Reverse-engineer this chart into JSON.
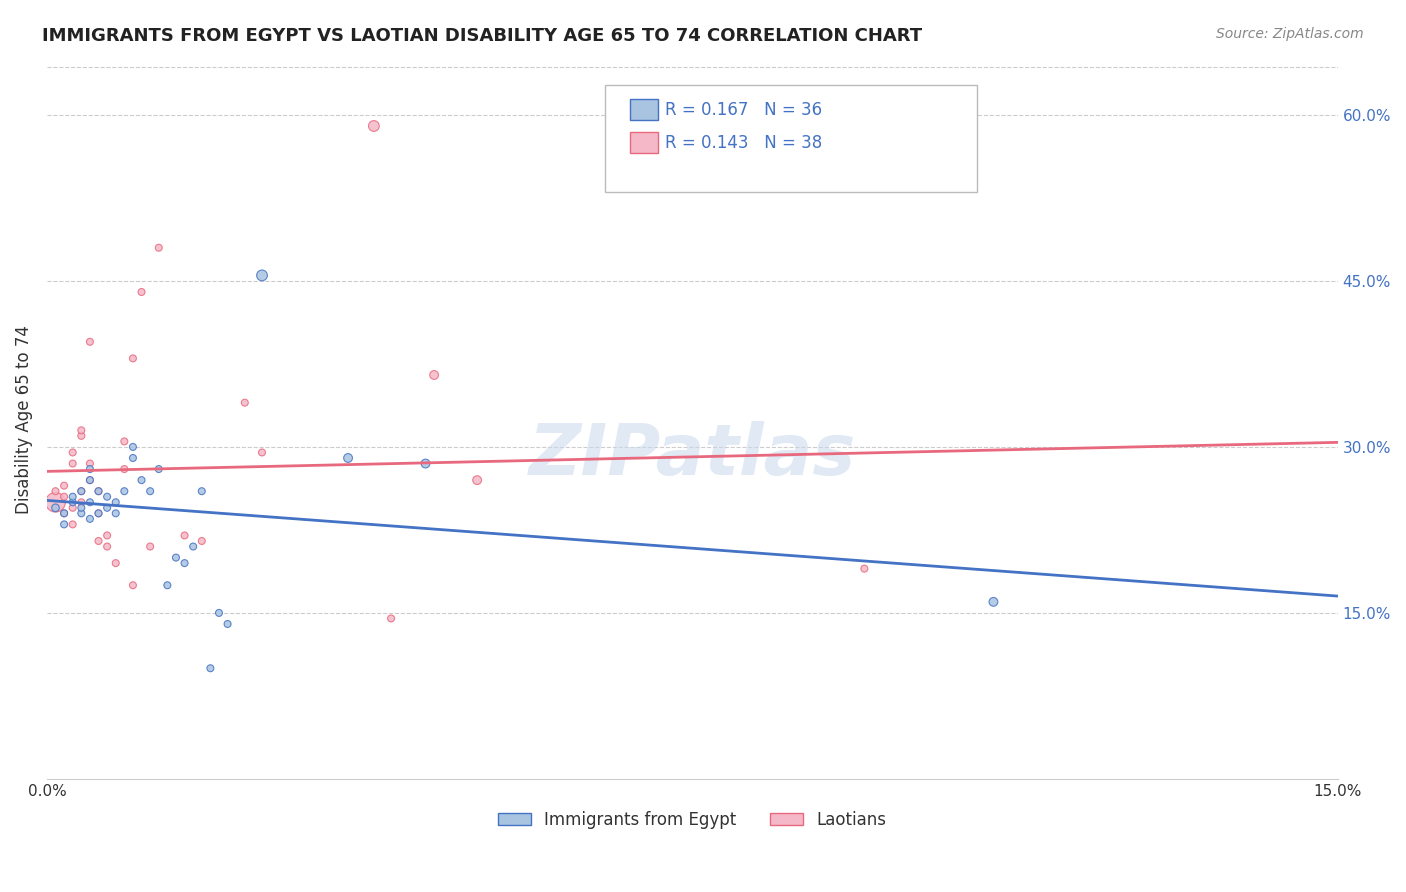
{
  "title": "IMMIGRANTS FROM EGYPT VS LAOTIAN DISABILITY AGE 65 TO 74 CORRELATION CHART",
  "source": "Source: ZipAtlas.com",
  "ylabel": "Disability Age 65 to 74",
  "x_min": 0.0,
  "x_max": 0.15,
  "y_min": 0.0,
  "y_max": 0.65,
  "x_tick_positions": [
    0.0,
    0.03,
    0.06,
    0.09,
    0.12,
    0.15
  ],
  "x_tick_labels": [
    "0.0%",
    "",
    "",
    "",
    "",
    "15.0%"
  ],
  "y_ticks_right": [
    0.15,
    0.3,
    0.45,
    0.6
  ],
  "y_tick_labels_right": [
    "15.0%",
    "30.0%",
    "45.0%",
    "60.0%"
  ],
  "legend_r1": "R = 0.167",
  "legend_n1": "N = 36",
  "legend_r2": "R = 0.143",
  "legend_n2": "N = 38",
  "color_egypt": "#a8c4e0",
  "color_laotian": "#f4b8c8",
  "color_egypt_line": "#4472c4",
  "color_laotian_line": "#e8697d",
  "color_title": "#222222",
  "color_source": "#888888",
  "watermark": "ZIPatlas",
  "egypt_points": [
    [
      0.001,
      0.245
    ],
    [
      0.002,
      0.23
    ],
    [
      0.002,
      0.24
    ],
    [
      0.003,
      0.25
    ],
    [
      0.003,
      0.255
    ],
    [
      0.004,
      0.24
    ],
    [
      0.004,
      0.245
    ],
    [
      0.004,
      0.26
    ],
    [
      0.005,
      0.235
    ],
    [
      0.005,
      0.25
    ],
    [
      0.005,
      0.27
    ],
    [
      0.005,
      0.28
    ],
    [
      0.006,
      0.24
    ],
    [
      0.006,
      0.26
    ],
    [
      0.007,
      0.245
    ],
    [
      0.007,
      0.255
    ],
    [
      0.008,
      0.24
    ],
    [
      0.008,
      0.25
    ],
    [
      0.009,
      0.26
    ],
    [
      0.01,
      0.29
    ],
    [
      0.01,
      0.3
    ],
    [
      0.011,
      0.27
    ],
    [
      0.012,
      0.26
    ],
    [
      0.013,
      0.28
    ],
    [
      0.014,
      0.175
    ],
    [
      0.015,
      0.2
    ],
    [
      0.016,
      0.195
    ],
    [
      0.017,
      0.21
    ],
    [
      0.018,
      0.26
    ],
    [
      0.019,
      0.1
    ],
    [
      0.02,
      0.15
    ],
    [
      0.021,
      0.14
    ],
    [
      0.025,
      0.455
    ],
    [
      0.035,
      0.29
    ],
    [
      0.044,
      0.285
    ],
    [
      0.11,
      0.16
    ]
  ],
  "laotian_points": [
    [
      0.001,
      0.25
    ],
    [
      0.001,
      0.26
    ],
    [
      0.002,
      0.24
    ],
    [
      0.002,
      0.255
    ],
    [
      0.002,
      0.265
    ],
    [
      0.003,
      0.23
    ],
    [
      0.003,
      0.245
    ],
    [
      0.003,
      0.285
    ],
    [
      0.003,
      0.295
    ],
    [
      0.004,
      0.25
    ],
    [
      0.004,
      0.26
    ],
    [
      0.004,
      0.31
    ],
    [
      0.004,
      0.315
    ],
    [
      0.005,
      0.27
    ],
    [
      0.005,
      0.285
    ],
    [
      0.005,
      0.395
    ],
    [
      0.006,
      0.215
    ],
    [
      0.006,
      0.24
    ],
    [
      0.006,
      0.26
    ],
    [
      0.007,
      0.21
    ],
    [
      0.007,
      0.22
    ],
    [
      0.008,
      0.195
    ],
    [
      0.009,
      0.28
    ],
    [
      0.009,
      0.305
    ],
    [
      0.01,
      0.175
    ],
    [
      0.01,
      0.38
    ],
    [
      0.011,
      0.44
    ],
    [
      0.012,
      0.21
    ],
    [
      0.013,
      0.48
    ],
    [
      0.016,
      0.22
    ],
    [
      0.018,
      0.215
    ],
    [
      0.023,
      0.34
    ],
    [
      0.025,
      0.295
    ],
    [
      0.04,
      0.145
    ],
    [
      0.095,
      0.19
    ],
    [
      0.038,
      0.59
    ],
    [
      0.045,
      0.365
    ],
    [
      0.05,
      0.27
    ]
  ],
  "egypt_sizes": [
    30,
    25,
    25,
    25,
    25,
    25,
    25,
    25,
    25,
    25,
    25,
    25,
    25,
    25,
    25,
    25,
    25,
    25,
    25,
    25,
    25,
    25,
    25,
    25,
    25,
    25,
    25,
    25,
    25,
    25,
    25,
    25,
    60,
    40,
    40,
    40
  ],
  "laotian_sizes": [
    200,
    25,
    25,
    25,
    25,
    25,
    25,
    25,
    25,
    25,
    25,
    25,
    25,
    25,
    25,
    25,
    25,
    25,
    25,
    25,
    25,
    25,
    25,
    25,
    25,
    25,
    25,
    25,
    25,
    25,
    25,
    25,
    25,
    25,
    25,
    60,
    40,
    40
  ]
}
